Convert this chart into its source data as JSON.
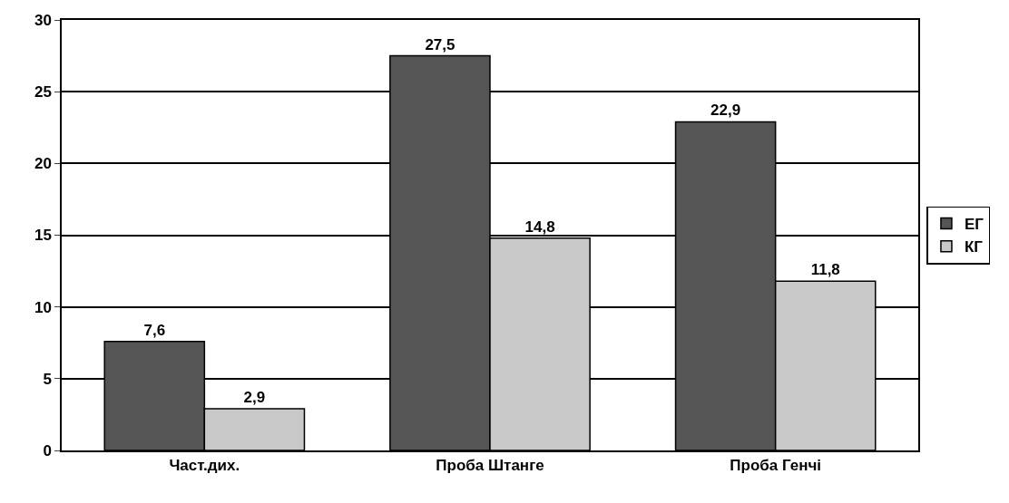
{
  "chart_data": {
    "type": "bar",
    "categories": [
      "Част.дих.",
      "Проба Штанге",
      "Проба Генчі"
    ],
    "series": [
      {
        "name": "ЕГ",
        "color": "#555555",
        "values": [
          7.6,
          27.5,
          22.9
        ],
        "value_labels": [
          "7,6",
          "27,5",
          "22,9"
        ]
      },
      {
        "name": "КГ",
        "color": "#c8c8c8",
        "values": [
          2.9,
          14.8,
          11.8
        ],
        "value_labels": [
          "2,9",
          "14,8",
          "11,8"
        ]
      }
    ],
    "ylim": [
      0,
      30
    ],
    "yticks": [
      0,
      5,
      10,
      15,
      20,
      25,
      30
    ],
    "grid": "y",
    "legend": "right"
  }
}
